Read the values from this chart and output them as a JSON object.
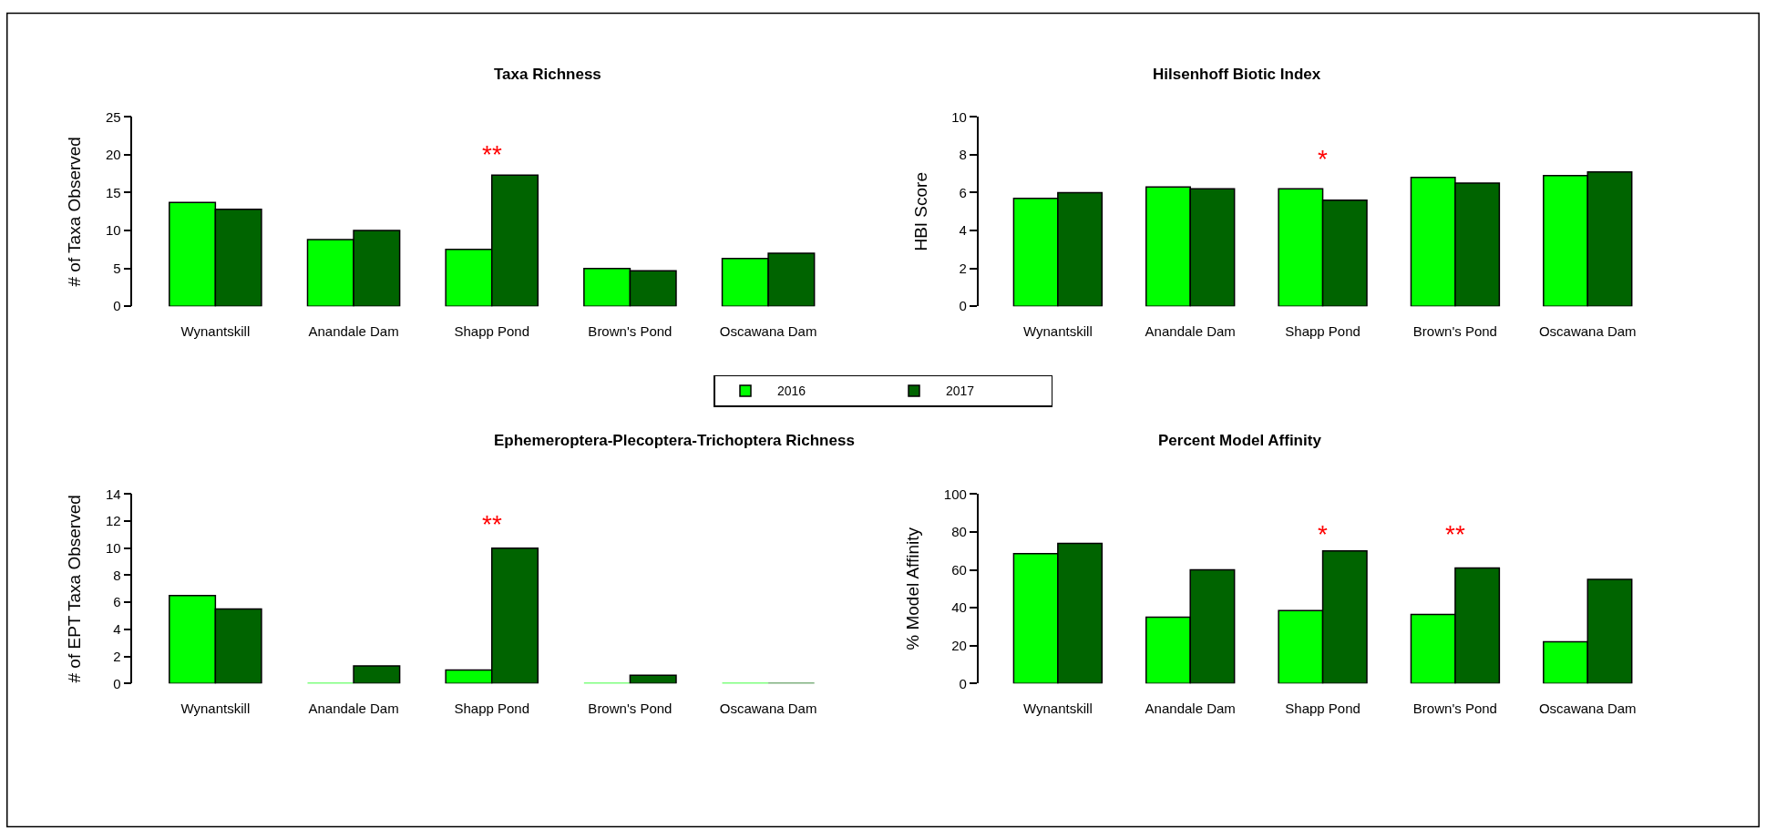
{
  "chart_data": [
    {
      "type": "bar",
      "title": "Taxa Richness",
      "ylabel": "# of Taxa Observed",
      "categories": [
        "Wynantskill",
        "Anandale Dam",
        "Shapp Pond",
        "Brown's Pond",
        "Oscawana Dam"
      ],
      "ylim": [
        0,
        25
      ],
      "yticks": [
        0,
        5,
        10,
        15,
        20,
        25
      ],
      "legend": "bottom",
      "series": [
        {
          "name": "2016",
          "color": "#00ff00",
          "values": [
            13.7,
            8.8,
            7.5,
            5.0,
            6.3
          ]
        },
        {
          "name": "2017",
          "color": "#006400",
          "values": [
            12.8,
            10.0,
            17.3,
            4.7,
            7.0
          ]
        }
      ],
      "annotations": [
        "**"
      ]
    },
    {
      "type": "bar",
      "title": "Hilsenhoff Biotic Index",
      "ylabel": "HBI Score",
      "categories": [
        "Wynantskill",
        "Anandale Dam",
        "Shapp Pond",
        "Brown's Pond",
        "Oscawana Dam"
      ],
      "ylim": [
        0,
        10
      ],
      "yticks": [
        0,
        2,
        4,
        6,
        8,
        10
      ],
      "series": [
        {
          "name": "2016",
          "color": "#00ff00",
          "values": [
            5.7,
            6.3,
            6.2,
            6.8,
            6.9
          ]
        },
        {
          "name": "2017",
          "color": "#006400",
          "values": [
            6.0,
            6.2,
            5.6,
            6.5,
            7.1
          ]
        }
      ],
      "annotations": [
        "*"
      ]
    },
    {
      "type": "bar",
      "title": "Ephemeroptera-Plecoptera-Trichoptera Richness",
      "ylabel": "# of EPT Taxa Observed",
      "categories": [
        "Wynantskill",
        "Anandale Dam",
        "Shapp Pond",
        "Brown's Pond",
        "Oscawana Dam"
      ],
      "ylim": [
        0,
        14
      ],
      "yticks": [
        0,
        2,
        4,
        6,
        8,
        10,
        12,
        14
      ],
      "series": [
        {
          "name": "2016",
          "color": "#00ff00",
          "values": [
            6.5,
            0,
            1.0,
            0,
            0
          ]
        },
        {
          "name": "2017",
          "color": "#006400",
          "values": [
            5.5,
            1.3,
            10.0,
            0.6,
            0
          ]
        }
      ],
      "annotations": [
        "**"
      ]
    },
    {
      "type": "bar",
      "title": "Percent Model Affinity",
      "ylabel": "% Model Affinity",
      "categories": [
        "Wynantskill",
        "Anandale Dam",
        "Shapp Pond",
        "Brown's Pond",
        "Oscawana Dam"
      ],
      "ylim": [
        0,
        100
      ],
      "yticks": [
        0,
        20,
        40,
        60,
        80,
        100
      ],
      "series": [
        {
          "name": "2016",
          "color": "#00ff00",
          "values": [
            68.5,
            35,
            38.5,
            36.5,
            22
          ]
        },
        {
          "name": "2017",
          "color": "#006400",
          "values": [
            74,
            60,
            70,
            61,
            55
          ]
        }
      ],
      "annotations": [
        "*",
        "**"
      ]
    }
  ]
}
